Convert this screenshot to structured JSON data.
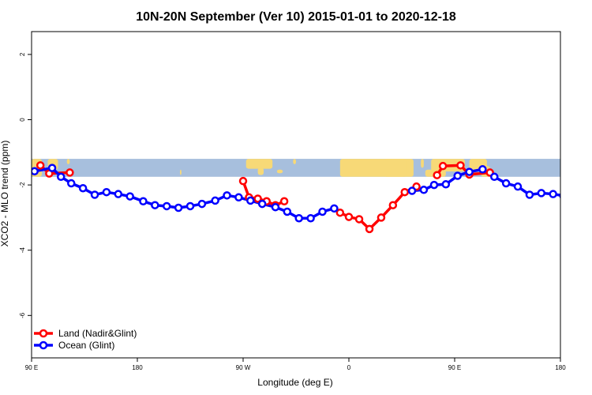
{
  "chart_data": {
    "type": "line",
    "title": "10N-20N September (Ver 10)   2015-01-01 to 2020-12-18",
    "xlabel": "Longitude (deg E)",
    "ylabel": "XCO2 - MLO trend (ppm)",
    "xlim": [
      90,
      450
    ],
    "ylim": [
      -7.3,
      2.7
    ],
    "x_ticks": [
      {
        "value": 90,
        "label": "90 E"
      },
      {
        "value": 162,
        "label": "180"
      },
      {
        "value": 234,
        "label": "90 W"
      },
      {
        "value": 306,
        "label": "0"
      },
      {
        "value": 378,
        "label": "90 E"
      },
      {
        "value": 450,
        "label": "180"
      }
    ],
    "y_ticks": [
      {
        "value": 2,
        "label": "2"
      },
      {
        "value": 0,
        "label": "0"
      },
      {
        "value": -2,
        "label": "-2"
      },
      {
        "value": -4,
        "label": "-4"
      },
      {
        "value": -6,
        "label": "-6"
      }
    ],
    "map_band": {
      "y_top": -1.2,
      "y_bottom": -1.75,
      "ocean_color": "#a7bfdd",
      "land_color": "#f7d977"
    },
    "legend_position": "bottom-left",
    "series": [
      {
        "name": "Land (Nadir&Glint)",
        "color": "#ff0000",
        "segments": [
          [
            [
              96,
              -1.4
            ],
            [
              102,
              -1.65
            ],
            [
              116,
              -1.62
            ]
          ],
          [
            [
              234,
              -1.88
            ],
            [
              238,
              -2.38
            ],
            [
              244,
              -2.42
            ],
            [
              250,
              -2.5
            ],
            [
              256,
              -2.62
            ],
            [
              262,
              -2.5
            ]
          ],
          [
            [
              300,
              -2.85
            ],
            [
              306,
              -2.98
            ],
            [
              313,
              -3.05
            ],
            [
              320,
              -3.35
            ],
            [
              328,
              -3.0
            ],
            [
              336,
              -2.62
            ],
            [
              344,
              -2.22
            ],
            [
              352,
              -2.05
            ]
          ],
          [
            [
              366,
              -1.7
            ],
            [
              370,
              -1.42
            ],
            [
              382,
              -1.4
            ],
            [
              388,
              -1.68
            ],
            [
              402,
              -1.62
            ]
          ]
        ]
      },
      {
        "name": "Ocean (Glint)",
        "color": "#0000ff",
        "points": [
          [
            92,
            -1.58
          ],
          [
            104,
            -1.48
          ],
          [
            110,
            -1.75
          ],
          [
            117,
            -1.95
          ],
          [
            125,
            -2.1
          ],
          [
            133,
            -2.3
          ],
          [
            141,
            -2.22
          ],
          [
            149,
            -2.28
          ],
          [
            157,
            -2.35
          ],
          [
            166,
            -2.5
          ],
          [
            174,
            -2.62
          ],
          [
            182,
            -2.65
          ],
          [
            190,
            -2.7
          ],
          [
            198,
            -2.65
          ],
          [
            206,
            -2.58
          ],
          [
            215,
            -2.48
          ],
          [
            223,
            -2.32
          ],
          [
            231,
            -2.38
          ],
          [
            239,
            -2.48
          ],
          [
            247,
            -2.58
          ],
          [
            256,
            -2.68
          ],
          [
            264,
            -2.82
          ],
          [
            272,
            -3.02
          ],
          [
            280,
            -3.02
          ],
          [
            288,
            -2.82
          ],
          [
            296,
            -2.72
          ],
          [
            349,
            -2.18
          ],
          [
            357,
            -2.15
          ],
          [
            364,
            -2.0
          ],
          [
            372,
            -1.98
          ],
          [
            380,
            -1.72
          ],
          [
            388,
            -1.6
          ],
          [
            397,
            -1.52
          ],
          [
            405,
            -1.75
          ],
          [
            413,
            -1.95
          ],
          [
            421,
            -2.05
          ],
          [
            429,
            -2.3
          ],
          [
            437,
            -2.25
          ],
          [
            445,
            -2.28
          ],
          [
            452,
            -2.33
          ]
        ]
      }
    ]
  }
}
